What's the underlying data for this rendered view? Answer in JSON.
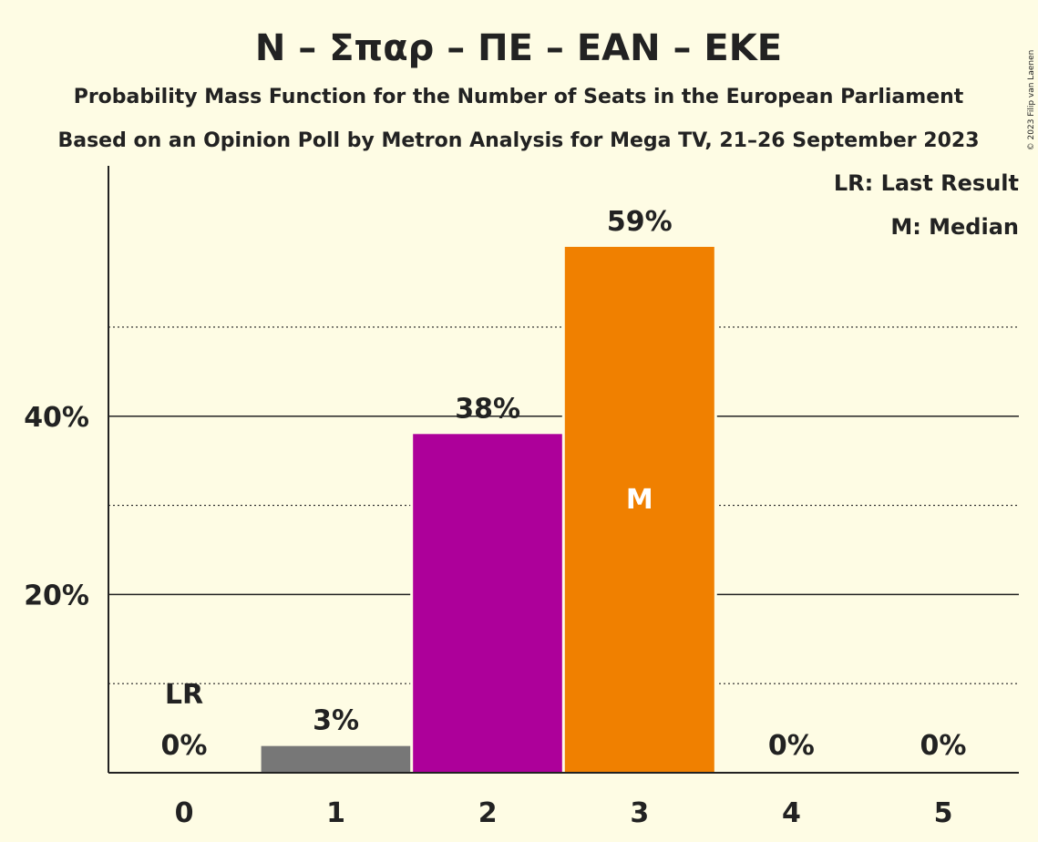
{
  "chart_data": {
    "type": "bar",
    "title": "N – Σπαρ – ΠΕ – ΕΑΝ – ΕΚΕ",
    "subtitle": "Probability Mass Function for the Number of Seats in the European Parliament",
    "subtitle2": "Based on an Opinion Poll by Metron Analysis for Mega TV, 21–26 September 2023",
    "copyright": "© 2023 Filip van Laenen",
    "categories": [
      "0",
      "1",
      "2",
      "3",
      "4",
      "5"
    ],
    "values": [
      0,
      3,
      38,
      59,
      0,
      0
    ],
    "value_labels": [
      "0%",
      "3%",
      "38%",
      "59%",
      "0%",
      "0%"
    ],
    "bar_colors": [
      "#777777",
      "#777777",
      "#ad009a",
      "#f08000",
      "#777777",
      "#777777"
    ],
    "ylim": [
      0,
      64
    ],
    "y_ticks": [
      {
        "value": 20,
        "label": "20%"
      },
      {
        "value": 40,
        "label": "40%"
      }
    ],
    "dotted_gridlines": [
      10,
      30,
      50
    ],
    "last_result_index": 0,
    "last_result_marker": "LR",
    "median_index": 3,
    "median_marker": "M",
    "legend": {
      "placement": "top-right",
      "last_result": "LR: Last Result",
      "median": "M: Median"
    }
  }
}
